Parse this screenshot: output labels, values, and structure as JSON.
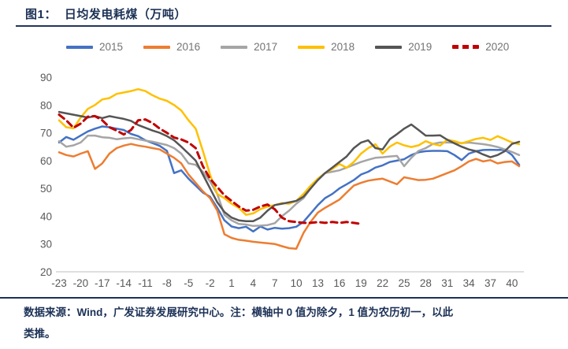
{
  "header": {
    "figure_label": "图1：",
    "title": "日均发电耗煤（万吨）"
  },
  "footer": {
    "line1": "数据来源：Wind，广发证券发展研究中心。注：横轴中 0 值为除夕，1 值为农历初一，以此",
    "line2": "类推。"
  },
  "colors": {
    "title_navy": "#1c3156",
    "axis_label_gray": "#595959",
    "legend_label_gray": "#737373",
    "axis_line_gray": "#bfbfbf"
  },
  "chart_data": {
    "type": "line",
    "title": "日均发电耗煤（万吨）",
    "xlabel": "",
    "ylabel": "",
    "grid": false,
    "legend_position": "top",
    "ylim": [
      20,
      90
    ],
    "xlim": [
      -23,
      41
    ],
    "y_ticks": [
      20,
      30,
      40,
      50,
      60,
      70,
      80,
      90
    ],
    "x_ticks": [
      -23,
      -20,
      -17,
      -14,
      -11,
      -8,
      -5,
      -2,
      1,
      4,
      7,
      10,
      13,
      16,
      19,
      22,
      25,
      28,
      31,
      34,
      37,
      40
    ],
    "x": [
      -23,
      -22,
      -21,
      -20,
      -19,
      -18,
      -17,
      -16,
      -15,
      -14,
      -13,
      -12,
      -11,
      -10,
      -9,
      -8,
      -7,
      -6,
      -5,
      -4,
      -3,
      -2,
      -1,
      0,
      1,
      2,
      3,
      4,
      5,
      6,
      7,
      8,
      9,
      10,
      11,
      12,
      13,
      14,
      15,
      16,
      17,
      18,
      19,
      20,
      21,
      22,
      23,
      24,
      25,
      26,
      27,
      28,
      29,
      30,
      31,
      32,
      33,
      34,
      35,
      36,
      37,
      38,
      39,
      40,
      41
    ],
    "series": [
      {
        "name": "2015",
        "color": "#4472c4",
        "style": "solid",
        "values": [
          66.5,
          68.5,
          67.5,
          69,
          70.5,
          71.5,
          72.3,
          72,
          71.5,
          71,
          69.6,
          68.8,
          67.3,
          66.3,
          65.3,
          63.5,
          55.5,
          56.5,
          53.5,
          51,
          48.5,
          47,
          43,
          38.5,
          36.3,
          35.7,
          36.2,
          34.5,
          36.3,
          35.2,
          35.8,
          35.5,
          35.7,
          36.2,
          38,
          41,
          44,
          46.5,
          48,
          50,
          51.5,
          53,
          55,
          56,
          57.5,
          58.3,
          59.5,
          60,
          60.5,
          62,
          63,
          63.4,
          63.5,
          63.5,
          63.4,
          62,
          60.2,
          62.5,
          63.4,
          63.8,
          63.9,
          63.8,
          63.9,
          62,
          58.5
        ]
      },
      {
        "name": "2016",
        "color": "#ed7d31",
        "style": "solid",
        "values": [
          63,
          62,
          61.5,
          62.5,
          63.4,
          57,
          59,
          62.5,
          64.5,
          65.4,
          66,
          65.4,
          65,
          64.5,
          64,
          62.5,
          61,
          59,
          55,
          52,
          49,
          46.5,
          42,
          33.5,
          32.2,
          31.5,
          31.2,
          30.8,
          30.5,
          30.3,
          30,
          29.2,
          28.5,
          28.3,
          34,
          38,
          41.3,
          43,
          44.5,
          46,
          48.5,
          51,
          52,
          52.8,
          53.2,
          53.5,
          52.5,
          51.5,
          54,
          53.5,
          53,
          53.1,
          53.5,
          54.5,
          55.5,
          56.5,
          58,
          59.7,
          60.6,
          59.7,
          60.2,
          59,
          59.5,
          59.7,
          58
        ]
      },
      {
        "name": "2017",
        "color": "#a5a5a5",
        "style": "solid",
        "values": [
          67,
          65,
          65.5,
          66.5,
          69,
          69,
          68.4,
          68.2,
          67.7,
          68,
          68.2,
          67.7,
          67.2,
          66.8,
          66.2,
          65.6,
          64.5,
          62.5,
          59,
          58.5,
          56,
          52.5,
          48,
          40.5,
          38.5,
          37.2,
          37,
          36.5,
          36.6,
          36.8,
          37.5,
          40,
          42,
          44.5,
          46.5,
          50,
          53.5,
          55.5,
          56,
          56.5,
          57.5,
          58.5,
          59.5,
          60.3,
          61,
          61.2,
          61.5,
          61.7,
          58,
          61,
          63.5,
          64.5,
          66,
          66.5,
          66.5,
          66.4,
          66.3,
          66.5,
          66.2,
          65.9,
          65.5,
          64.9,
          64,
          63.1,
          62
        ]
      },
      {
        "name": "2018",
        "color": "#ffc000",
        "style": "solid",
        "values": [
          74.5,
          72,
          71.6,
          75.5,
          78.6,
          80,
          82,
          82.5,
          84,
          84.5,
          85,
          85.7,
          85,
          83.5,
          82.3,
          81.5,
          80,
          78,
          74.5,
          71.5,
          63.5,
          55,
          48,
          46.5,
          44.5,
          43,
          40.5,
          41,
          42.5,
          43.5,
          44,
          44.7,
          44.5,
          45.5,
          48,
          51,
          53.5,
          55.5,
          57,
          58.8,
          57.4,
          59.5,
          62.5,
          64.5,
          65.9,
          62.5,
          65,
          66.5,
          65.5,
          64.9,
          65.5,
          67,
          66,
          65.4,
          67.5,
          67,
          66.2,
          67,
          67.8,
          68.2,
          67.4,
          68.8,
          67.7,
          66.5,
          65.9
        ]
      },
      {
        "name": "2019",
        "color": "#555555",
        "style": "solid",
        "values": [
          77.5,
          77,
          76.5,
          76,
          75.5,
          76,
          75.3,
          76,
          75.5,
          75,
          74.3,
          72.8,
          71.8,
          70.8,
          70,
          68.8,
          67.3,
          65,
          62.5,
          60,
          55,
          50,
          45,
          41.5,
          39.5,
          38.5,
          38.2,
          38.2,
          39.5,
          42,
          44,
          44.5,
          45,
          45.5,
          47,
          50,
          53,
          55.5,
          57.5,
          59.5,
          61.5,
          64.5,
          66.5,
          67.3,
          64.5,
          64,
          67.7,
          69.5,
          71.5,
          73,
          71,
          69,
          69,
          69.1,
          67.5,
          66.2,
          65,
          64,
          63.4,
          62.2,
          61.2,
          62,
          63.4,
          66,
          66.8
        ]
      },
      {
        "name": "2020",
        "color": "#c00000",
        "style": "dashed",
        "values": [
          76.5,
          74.5,
          71.8,
          73.3,
          75.8,
          76,
          74.5,
          72,
          70.8,
          69.4,
          71,
          74.5,
          74.8,
          73.5,
          71.5,
          70,
          68.3,
          67.6,
          66.5,
          64.5,
          58,
          53.5,
          50.5,
          47.5,
          45.5,
          43.5,
          42,
          42.3,
          43.5,
          44.2,
          42.5,
          39.5,
          38.2,
          37.9,
          37.6,
          37.6,
          37.9,
          37.6,
          37.9,
          37.6,
          37.9,
          37.6,
          37.2
        ]
      }
    ]
  }
}
